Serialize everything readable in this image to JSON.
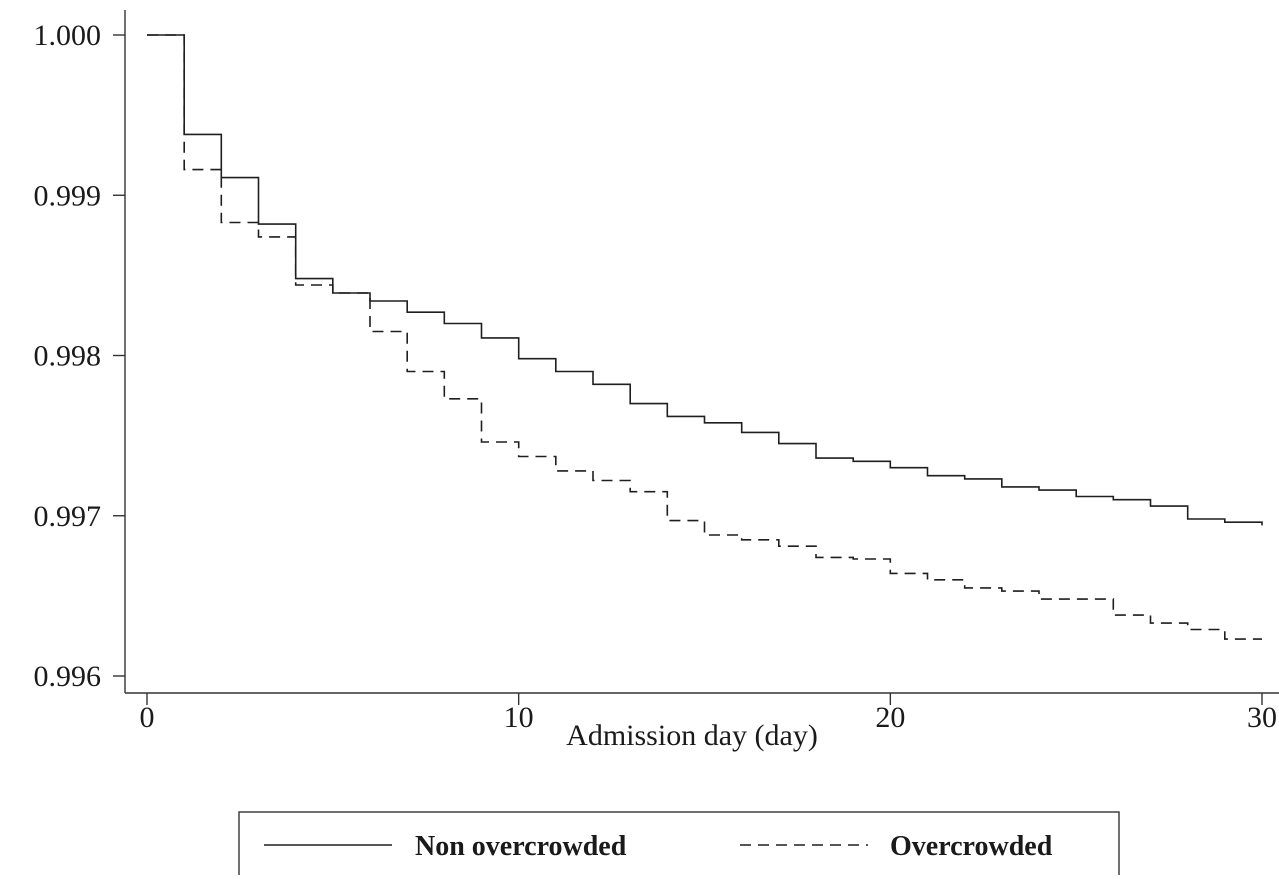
{
  "chart_data": {
    "type": "line",
    "xlabel": "Admission day (day)",
    "ylabel": "",
    "xlim": [
      0,
      30
    ],
    "ylim": [
      0.996,
      1.0
    ],
    "x_ticks": [
      "0",
      "10",
      "20",
      "30"
    ],
    "y_ticks": [
      "1.000",
      "0.999",
      "0.998",
      "0.997",
      "0.996"
    ],
    "grid": false,
    "legend_position": "bottom",
    "line_style": "step",
    "series": [
      {
        "name": "Non overcrowded",
        "dash": "solid",
        "color": "#1f1f1f",
        "points": [
          [
            0,
            1.0
          ],
          [
            1,
            0.99938
          ],
          [
            2,
            0.99911
          ],
          [
            3,
            0.99882
          ],
          [
            4,
            0.99848
          ],
          [
            5,
            0.99839
          ],
          [
            6,
            0.99834
          ],
          [
            7,
            0.99827
          ],
          [
            8,
            0.9982
          ],
          [
            9,
            0.99811
          ],
          [
            10,
            0.99798
          ],
          [
            11,
            0.9979
          ],
          [
            12,
            0.99782
          ],
          [
            13,
            0.9977
          ],
          [
            14,
            0.99762
          ],
          [
            15,
            0.99758
          ],
          [
            16,
            0.99752
          ],
          [
            17,
            0.99745
          ],
          [
            18,
            0.99736
          ],
          [
            19,
            0.99734
          ],
          [
            20,
            0.9973
          ],
          [
            21,
            0.99725
          ],
          [
            22,
            0.99723
          ],
          [
            23,
            0.99718
          ],
          [
            24,
            0.99716
          ],
          [
            25,
            0.99712
          ],
          [
            26,
            0.9971
          ],
          [
            27,
            0.99706
          ],
          [
            28,
            0.99698
          ],
          [
            29,
            0.99696
          ],
          [
            30,
            0.99694
          ]
        ]
      },
      {
        "name": "Overcrowded",
        "dash": "dashed",
        "color": "#1f1f1f",
        "points": [
          [
            0,
            1.0
          ],
          [
            1,
            0.99916
          ],
          [
            2,
            0.99883
          ],
          [
            3,
            0.99874
          ],
          [
            4,
            0.99844
          ],
          [
            5,
            0.99839
          ],
          [
            6,
            0.99815
          ],
          [
            7,
            0.9979
          ],
          [
            8,
            0.99773
          ],
          [
            9,
            0.99746
          ],
          [
            10,
            0.99737
          ],
          [
            11,
            0.99728
          ],
          [
            12,
            0.99722
          ],
          [
            13,
            0.99715
          ],
          [
            14,
            0.99697
          ],
          [
            15,
            0.99688
          ],
          [
            16,
            0.99685
          ],
          [
            17,
            0.99681
          ],
          [
            18,
            0.99674
          ],
          [
            19,
            0.99673
          ],
          [
            20,
            0.99664
          ],
          [
            21,
            0.9966
          ],
          [
            22,
            0.99655
          ],
          [
            23,
            0.99653
          ],
          [
            24,
            0.99648
          ],
          [
            25,
            0.99648
          ],
          [
            26,
            0.99638
          ],
          [
            27,
            0.99633
          ],
          [
            28,
            0.99629
          ],
          [
            29,
            0.99623
          ],
          [
            30,
            0.99623
          ]
        ]
      }
    ]
  }
}
